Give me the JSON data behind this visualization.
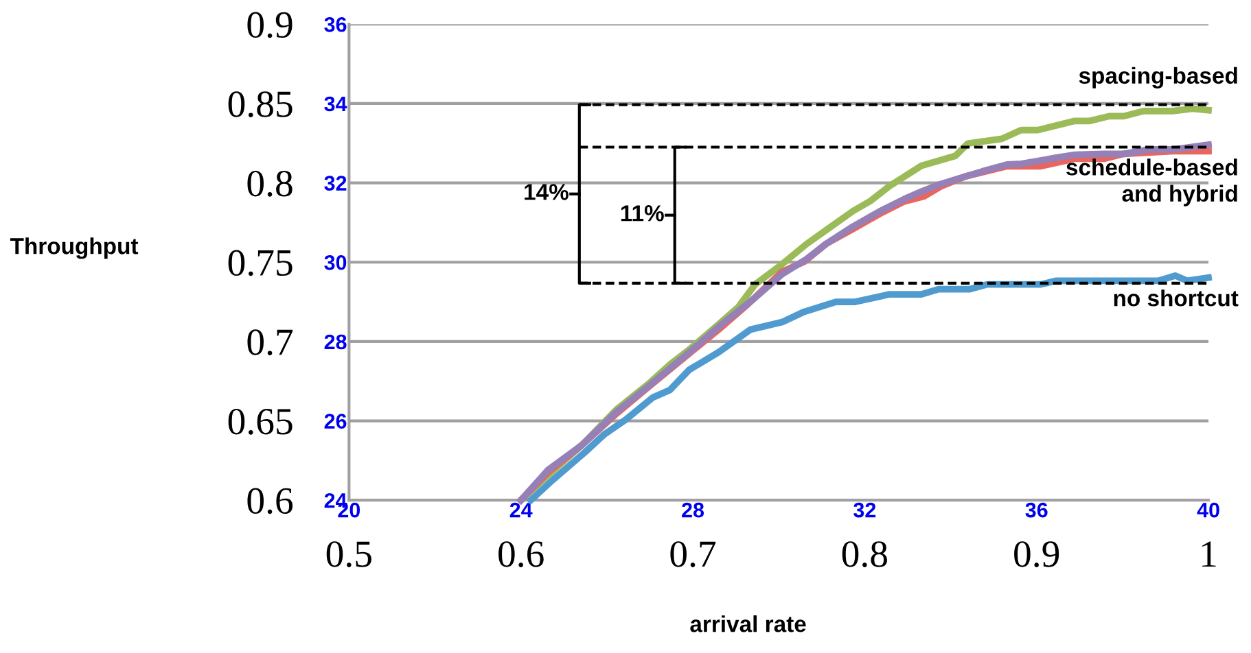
{
  "chart_data": {
    "type": "line",
    "x2label": "arrival rate",
    "y2label": "Throughput",
    "x2lim": [
      0.5,
      1
    ],
    "x2ticks": [
      0.5,
      0.6,
      0.7,
      0.8,
      0.9,
      1
    ],
    "xlim": [
      20,
      40
    ],
    "xticks": [
      20,
      24,
      28,
      32,
      36,
      40
    ],
    "y2lim": [
      0.6,
      0.9
    ],
    "y2ticks": [
      0.6,
      0.65,
      0.7,
      0.75,
      0.8,
      0.85,
      0.9
    ],
    "ylim": [
      24,
      36
    ],
    "yticks": [
      24,
      26,
      28,
      30,
      32,
      34,
      36
    ],
    "grid": "y",
    "legend": false,
    "marker": "none",
    "line_style": "solid",
    "series": [
      {
        "name": "spacing-based",
        "color": "#9bbb59",
        "x": [
          24,
          24.63,
          25.42,
          26.22,
          27.01,
          27.47,
          27.92,
          28.6,
          29.06,
          29.45,
          30.08,
          30.65,
          31.22,
          31.73,
          32.13,
          32.58,
          33.32,
          34.11,
          34.4,
          35.19,
          35.64,
          36.03,
          36.89,
          37.24,
          37.69,
          38.03,
          38.49,
          39.17,
          39.63,
          40
        ],
        "values": [
          24,
          24.63,
          25.39,
          26.28,
          26.97,
          27.42,
          27.8,
          28.43,
          28.87,
          29.44,
          29.95,
          30.46,
          30.9,
          31.29,
          31.54,
          31.92,
          32.43,
          32.68,
          32.99,
          33.11,
          33.33,
          33.33,
          33.56,
          33.56,
          33.68,
          33.68,
          33.81,
          33.81,
          33.87,
          33.83
        ]
      },
      {
        "name": null,
        "color": "#e8665f",
        "x": [
          24,
          24.63,
          25.42,
          26.22,
          27.01,
          27.92,
          28.6,
          29.28,
          30.08,
          30.59,
          31.1,
          31.73,
          32.35,
          32.92,
          33.38,
          33.77,
          34.34,
          35.31,
          36.1,
          36.9,
          37.58,
          38.03,
          39.17,
          40
        ],
        "values": [
          24,
          24.7,
          25.39,
          26.18,
          26.89,
          27.7,
          28.3,
          28.94,
          29.76,
          30.01,
          30.46,
          30.84,
          31.22,
          31.53,
          31.66,
          31.91,
          32.16,
          32.42,
          32.42,
          32.61,
          32.61,
          32.73,
          32.8,
          32.8
        ]
      },
      {
        "name": "schedule-based\nand hybrid",
        "color": "#9680b8",
        "x": [
          24,
          24.63,
          25.42,
          26.22,
          27.01,
          27.92,
          28.6,
          29.4,
          30.08,
          30.65,
          31.1,
          31.73,
          32.35,
          32.92,
          33.32,
          33.77,
          34.34,
          34.74,
          35.31,
          35.65,
          36.44,
          36.9,
          37.58,
          38.03,
          38.6,
          39.17,
          40
        ],
        "values": [
          24,
          24.76,
          25.39,
          26.22,
          26.91,
          27.73,
          28.37,
          29.06,
          29.7,
          30.08,
          30.46,
          30.9,
          31.28,
          31.59,
          31.78,
          31.97,
          32.16,
          32.29,
          32.46,
          32.48,
          32.63,
          32.71,
          32.73,
          32.73,
          32.84,
          32.84,
          32.96
        ]
      },
      {
        "name": "no shortcut",
        "color": "#4f9bd0",
        "x": [
          24.23,
          24.74,
          25.48,
          25.93,
          26.44,
          27.07,
          27.47,
          27.92,
          28.6,
          29.34,
          30.08,
          30.59,
          31.33,
          31.78,
          32.58,
          33.32,
          33.72,
          34.45,
          34.85,
          36.1,
          36.44,
          38.83,
          39.23,
          39.51,
          40
        ],
        "values": [
          24,
          24.51,
          25.2,
          25.65,
          26.03,
          26.59,
          26.78,
          27.29,
          27.73,
          28.3,
          28.49,
          28.75,
          29,
          29,
          29.19,
          29.19,
          29.32,
          29.32,
          29.44,
          29.44,
          29.53,
          29.53,
          29.66,
          29.53,
          29.61
        ]
      }
    ],
    "ref_lines": [
      {
        "axis": "y",
        "value": 33.97,
        "color": "#000000",
        "line_style": "dashed"
      },
      {
        "axis": "y",
        "value": 32.9,
        "color": "#000000",
        "line_style": "dashed"
      },
      {
        "axis": "y",
        "value": 29.47,
        "color": "#000000",
        "line_style": "dashed"
      }
    ],
    "annotations": [
      "14%",
      "11%"
    ]
  }
}
